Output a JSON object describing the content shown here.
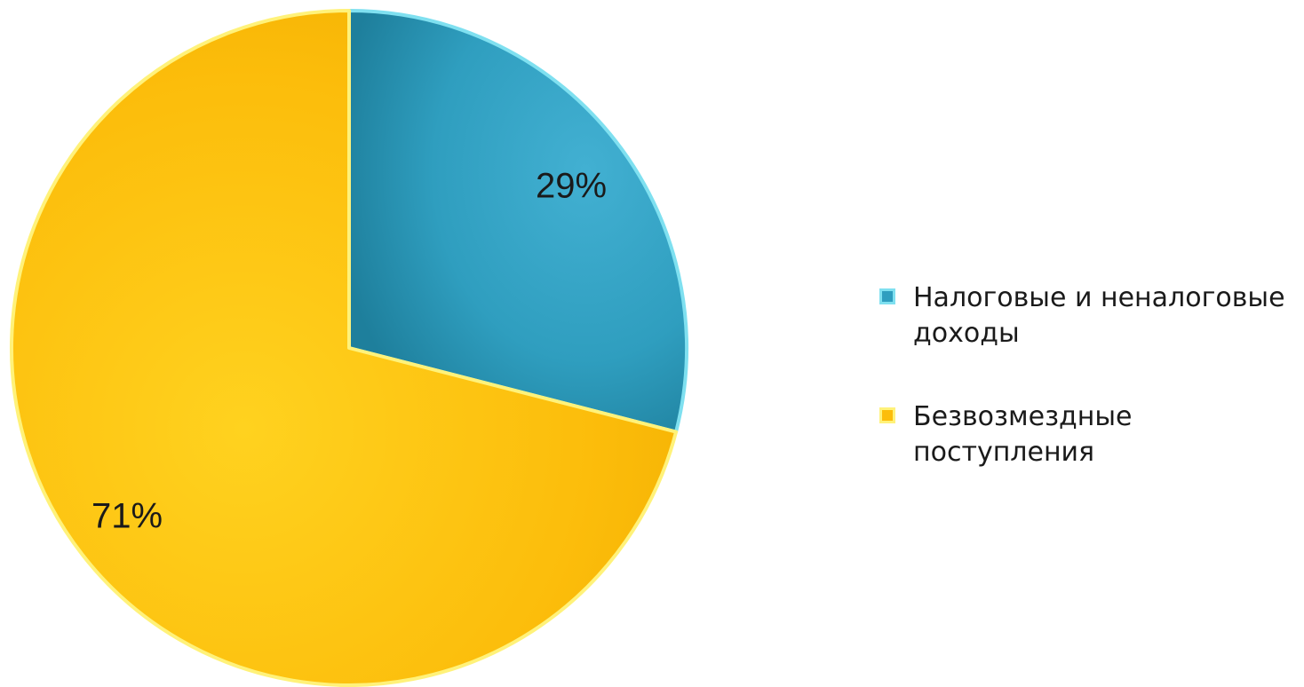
{
  "chart_data": {
    "type": "pie",
    "title": "",
    "slices": [
      {
        "name": "Налоговые и неналоговые доходы",
        "value": 29,
        "label": "29%",
        "color": "#2f9ebf",
        "edge": "#7fe0f0"
      },
      {
        "name": "Безвозмездные поступления",
        "value": 71,
        "label": "71%",
        "color": "#fcbd0b",
        "edge": "#fff27a"
      }
    ],
    "start_angle_deg": 0,
    "direction": "clockwise",
    "legend_position": "right"
  }
}
